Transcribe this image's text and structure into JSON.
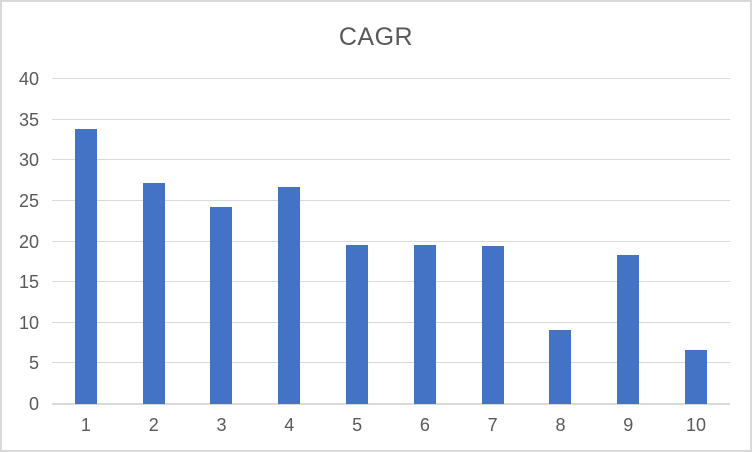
{
  "chart_data": {
    "type": "bar",
    "title": "CAGR",
    "categories": [
      "1",
      "2",
      "3",
      "4",
      "5",
      "6",
      "7",
      "8",
      "9",
      "10"
    ],
    "values": [
      33.9,
      27.2,
      24.3,
      26.7,
      19.6,
      19.6,
      19.5,
      9.1,
      18.3,
      6.7
    ],
    "xlabel": "",
    "ylabel": "",
    "ylim": [
      0,
      40
    ],
    "yticks": [
      0,
      5,
      10,
      15,
      20,
      25,
      30,
      35,
      40
    ],
    "grid": true,
    "legend": false,
    "bar_color": "#4472c4",
    "gridline_color": "#d9d9d9",
    "axis_line_color": "#d9d9d9",
    "tick_label_color": "#595959",
    "title_color": "#595959",
    "frame_border_color": "#d9d9d9",
    "background_color": "#ffffff"
  }
}
